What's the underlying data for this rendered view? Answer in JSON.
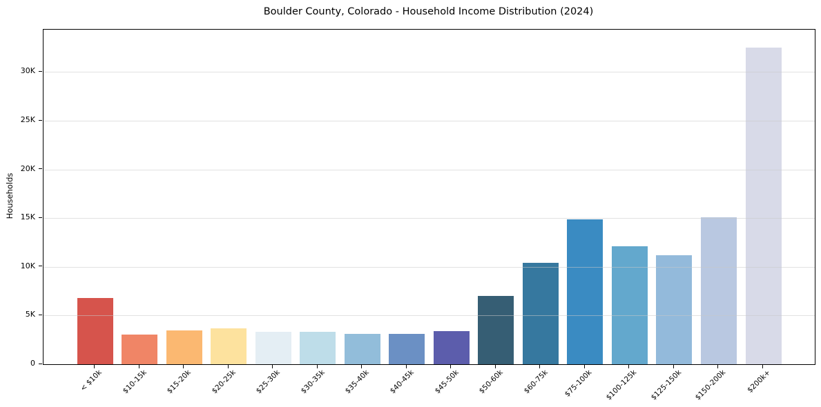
{
  "figure": {
    "title": "Boulder County, Colorado - Household Income Distribution (2024)",
    "ylabel": "Households"
  },
  "chart_data": {
    "type": "bar",
    "title": "Boulder County, Colorado - Household Income Distribution (2024)",
    "xlabel": "",
    "ylabel": "Households",
    "categories": [
      "< $10k",
      "$10-15k",
      "$15-20k",
      "$20-25k",
      "$25-30k",
      "$30-35k",
      "$35-40k",
      "$40-45k",
      "$45-50k",
      "$50-60k",
      "$60-75k",
      "$75-100k",
      "$100-125k",
      "$125-150k",
      "$150-200k",
      "$200k+"
    ],
    "values": [
      6800,
      3050,
      3500,
      3700,
      3300,
      3350,
      3100,
      3150,
      3400,
      7000,
      10400,
      14900,
      12100,
      11200,
      15100,
      32500
    ],
    "bar_colors": [
      "#d6544c",
      "#f08566",
      "#fbb871",
      "#fde29e",
      "#e4eef4",
      "#bedde9",
      "#92bdda",
      "#6b90c4",
      "#5c5dac",
      "#365e74",
      "#36789f",
      "#3a8bc2",
      "#63a8cd",
      "#93badb",
      "#b9c8e1",
      "#d8dae8"
    ],
    "yticks": [
      0,
      5000,
      10000,
      15000,
      20000,
      25000,
      30000
    ],
    "ytick_labels": [
      "0",
      "5K",
      "10K",
      "15K",
      "20K",
      "25K",
      "30K"
    ],
    "ylim": [
      0,
      34350
    ],
    "grid": "horizontal",
    "grid_above_bars": true,
    "legend": "none",
    "x_tick_rotation_deg": 45,
    "spines": "full-box",
    "background_color": "#ffffff"
  }
}
